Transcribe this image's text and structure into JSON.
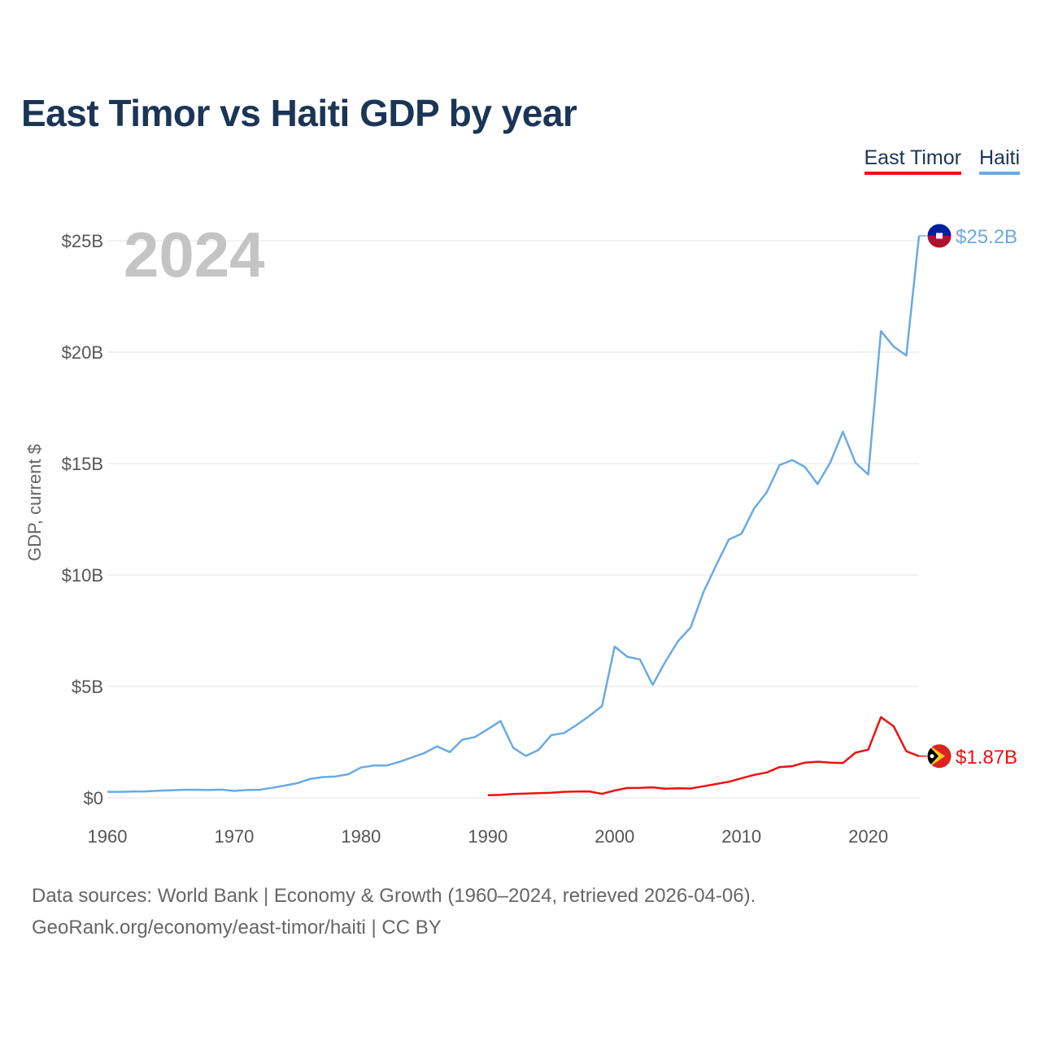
{
  "chart_data": {
    "type": "line",
    "title": "East Timor vs Haiti GDP by year",
    "ylabel": "GDP, current $",
    "xlabel": "",
    "xlim": [
      1960,
      2024
    ],
    "ylim": [
      0,
      25
    ],
    "x_ticks": [
      1960,
      1970,
      1980,
      1990,
      2000,
      2010,
      2020
    ],
    "x_tick_labels": [
      "1960",
      "1970",
      "1980",
      "1990",
      "2000",
      "2010",
      "2020"
    ],
    "y_ticks": [
      0,
      5,
      10,
      15,
      20,
      25
    ],
    "y_tick_labels": [
      "$0",
      "$5B",
      "$10B",
      "$15B",
      "$20B",
      "$25B"
    ],
    "current_year_label": "2024",
    "units": "billions of current US$",
    "series": [
      {
        "name": "East Timor",
        "color": "#ee1111",
        "end_label": "$1.87B",
        "flag_icon": "east-timor-flag-icon",
        "x": [
          1990,
          1991,
          1992,
          1993,
          1994,
          1995,
          1996,
          1997,
          1998,
          1999,
          2000,
          2001,
          2002,
          2003,
          2004,
          2005,
          2006,
          2007,
          2008,
          2009,
          2010,
          2011,
          2012,
          2013,
          2014,
          2015,
          2016,
          2017,
          2018,
          2019,
          2020,
          2021,
          2022,
          2023,
          2024
        ],
        "values": [
          0.12,
          0.13,
          0.17,
          0.19,
          0.21,
          0.23,
          0.27,
          0.28,
          0.29,
          0.18,
          0.33,
          0.44,
          0.45,
          0.47,
          0.41,
          0.43,
          0.42,
          0.52,
          0.62,
          0.72,
          0.88,
          1.03,
          1.14,
          1.38,
          1.42,
          1.58,
          1.62,
          1.58,
          1.56,
          2.03,
          2.16,
          3.62,
          3.21,
          2.09,
          1.87
        ]
      },
      {
        "name": "Haiti",
        "color": "#6aaae4",
        "end_label": "$25.2B",
        "flag_icon": "haiti-flag-icon",
        "x": [
          1960,
          1961,
          1962,
          1963,
          1964,
          1965,
          1966,
          1967,
          1968,
          1969,
          1970,
          1971,
          1972,
          1973,
          1974,
          1975,
          1976,
          1977,
          1978,
          1979,
          1980,
          1981,
          1982,
          1983,
          1984,
          1985,
          1986,
          1987,
          1988,
          1989,
          1990,
          1991,
          1992,
          1993,
          1994,
          1995,
          1996,
          1997,
          1998,
          1999,
          2000,
          2001,
          2002,
          2003,
          2004,
          2005,
          2006,
          2007,
          2008,
          2009,
          2010,
          2011,
          2012,
          2013,
          2014,
          2015,
          2016,
          2017,
          2018,
          2019,
          2020,
          2021,
          2022,
          2023,
          2024
        ],
        "values": [
          0.27,
          0.27,
          0.28,
          0.29,
          0.32,
          0.34,
          0.36,
          0.36,
          0.35,
          0.37,
          0.31,
          0.35,
          0.36,
          0.45,
          0.55,
          0.66,
          0.85,
          0.93,
          0.96,
          1.06,
          1.36,
          1.45,
          1.45,
          1.61,
          1.81,
          2.01,
          2.31,
          2.05,
          2.61,
          2.73,
          3.08,
          3.45,
          2.25,
          1.88,
          2.15,
          2.81,
          2.91,
          3.27,
          3.67,
          4.12,
          6.79,
          6.33,
          6.21,
          5.07,
          6.11,
          7.03,
          7.65,
          9.23,
          10.43,
          11.59,
          11.85,
          12.99,
          13.72,
          14.93,
          15.16,
          14.85,
          14.08,
          15.04,
          16.43,
          15.03,
          14.51,
          20.94,
          20.25,
          19.85,
          25.22
        ]
      }
    ]
  },
  "legend": [
    {
      "label": "East Timor",
      "color": "#ee1111"
    },
    {
      "label": "Haiti",
      "color": "#6aaae4"
    }
  ],
  "footer": {
    "line1": "Data sources: World Bank | Economy & Growth (1960–2024, retrieved 2026-04-06).",
    "line2": "GeoRank.org/economy/east-timor/haiti | CC BY"
  }
}
